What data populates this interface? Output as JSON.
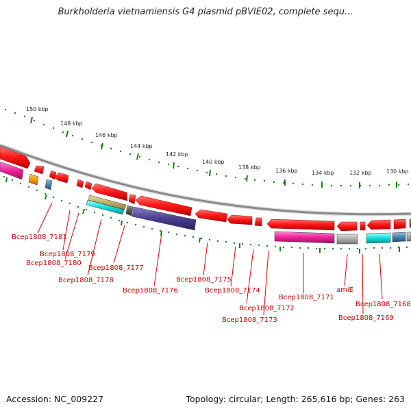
{
  "title": "Burkholderia vietnamiensis G4 plasmid pBVIE02, complete sequ...",
  "footer": {
    "accession": "Accession: NC_009227",
    "topology": "Topology: circular; Length: 265,616 bp; Genes: 263"
  },
  "ticks": [
    "150 kbp",
    "148 kbp",
    "146 kbp",
    "144 kbp",
    "142 kbp",
    "140 kbp",
    "138 kbp",
    "136 kbp",
    "134 kbp",
    "132 kbp",
    "130 kbp"
  ],
  "gene_labels": [
    "Bcep1808_7181",
    "Bcep1808_7179",
    "Bcep1808_7180",
    "Bcep1808_7178",
    "Bcep1808_7177",
    "Bcep1808_7176",
    "Bcep1808_7175",
    "Bcep1808_7174",
    "Bcep1808_7172",
    "Bcep1808_7173",
    "Bcep1808_7171",
    "amiE",
    "Bcep1808_7168",
    "Bcep1808_7169"
  ],
  "colors": {
    "backbone": "#8a8a8a",
    "tick": "#1a7a1a",
    "gene_forward": "#ee1111",
    "label_line": "#dd0000",
    "label_text": "#cc0000"
  }
}
